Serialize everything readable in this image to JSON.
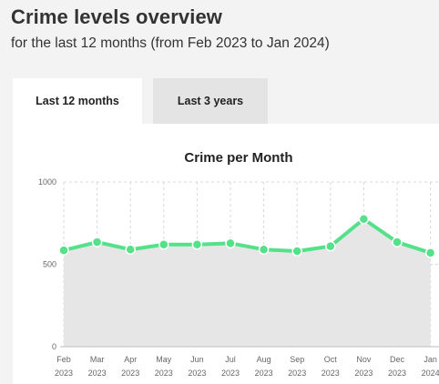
{
  "header": {
    "title": "Crime levels overview",
    "subtitle": "for the last 12 months (from Feb 2023 to Jan 2024)"
  },
  "tabs": [
    {
      "label": "Last 12 months",
      "active": true
    },
    {
      "label": "Last 3 years",
      "active": false
    }
  ],
  "colors": {
    "line": "#55e08a",
    "area": "#e6e6e6",
    "grid": "#d8d8d8",
    "axis_text": "#666666"
  },
  "chart_data": {
    "type": "line",
    "title": "Crime per Month",
    "categories": [
      "Feb",
      "Mar",
      "Apr",
      "May",
      "Jun",
      "Jul",
      "Aug",
      "Sep",
      "Oct",
      "Nov",
      "Dec",
      "Jan"
    ],
    "category_years": [
      "2023",
      "2023",
      "2023",
      "2023",
      "2023",
      "2023",
      "2023",
      "2023",
      "2023",
      "2023",
      "2023",
      "2024"
    ],
    "series": [
      {
        "values": [
          585,
          635,
          590,
          620,
          620,
          628,
          590,
          580,
          610,
          775,
          635,
          570
        ]
      }
    ],
    "ylim": [
      0,
      1000
    ],
    "yticks": [
      "0",
      "500",
      "1000"
    ],
    "grid": true,
    "area_fill": true
  }
}
